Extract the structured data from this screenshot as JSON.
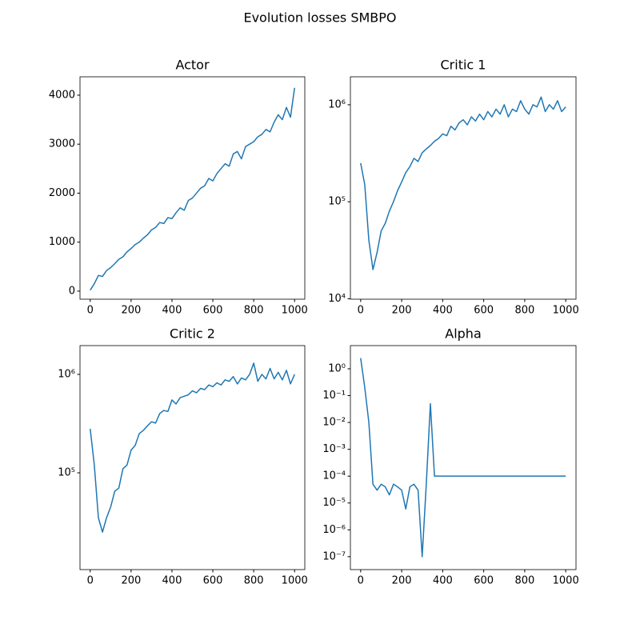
{
  "title": "Evolution losses SMBPO",
  "chart_data": [
    {
      "type": "line",
      "title": "Actor",
      "color": "#1f77b4",
      "x": [
        0,
        20,
        40,
        60,
        80,
        100,
        120,
        140,
        160,
        180,
        200,
        220,
        240,
        260,
        280,
        300,
        320,
        340,
        360,
        380,
        400,
        420,
        440,
        460,
        480,
        500,
        520,
        540,
        560,
        580,
        600,
        620,
        640,
        660,
        680,
        700,
        720,
        740,
        760,
        780,
        800,
        820,
        840,
        860,
        880,
        900,
        920,
        940,
        960,
        980,
        1000
      ],
      "values": [
        20,
        150,
        320,
        300,
        420,
        480,
        560,
        650,
        700,
        800,
        870,
        950,
        1000,
        1080,
        1150,
        1250,
        1300,
        1400,
        1380,
        1500,
        1480,
        1600,
        1700,
        1650,
        1850,
        1900,
        2000,
        2100,
        2150,
        2300,
        2250,
        2400,
        2500,
        2600,
        2550,
        2800,
        2850,
        2700,
        2950,
        3000,
        3050,
        3150,
        3200,
        3300,
        3250,
        3450,
        3600,
        3500,
        3750,
        3550,
        4150
      ],
      "xlim": [
        -50,
        1050
      ],
      "xticks": [
        0,
        200,
        400,
        600,
        800,
        1000
      ],
      "ylim": [
        -165,
        4375
      ],
      "yticks": [
        0,
        1000,
        2000,
        3000,
        4000
      ],
      "yscale": "linear"
    },
    {
      "type": "line",
      "title": "Critic 1",
      "color": "#1f77b4",
      "x": [
        0,
        20,
        40,
        60,
        80,
        100,
        120,
        140,
        160,
        180,
        200,
        220,
        240,
        260,
        280,
        300,
        320,
        340,
        360,
        380,
        400,
        420,
        440,
        460,
        480,
        500,
        520,
        540,
        560,
        580,
        600,
        620,
        640,
        660,
        680,
        700,
        720,
        740,
        760,
        780,
        800,
        820,
        840,
        860,
        880,
        900,
        920,
        940,
        960,
        980,
        1000
      ],
      "values": [
        250000,
        150000,
        40000,
        20000,
        30000,
        50000,
        60000,
        80000,
        100000,
        130000,
        160000,
        200000,
        230000,
        280000,
        260000,
        320000,
        350000,
        380000,
        420000,
        450000,
        500000,
        480000,
        600000,
        550000,
        650000,
        700000,
        620000,
        750000,
        680000,
        800000,
        700000,
        850000,
        750000,
        900000,
        800000,
        1000000,
        750000,
        900000,
        850000,
        1100000,
        900000,
        800000,
        1000000,
        950000,
        1200000,
        850000,
        1000000,
        900000,
        1100000,
        850000,
        950000
      ],
      "xlim": [
        -50,
        1050
      ],
      "xticks": [
        0,
        200,
        400,
        600,
        800,
        1000
      ],
      "ylim": [
        9900,
        1940000
      ],
      "yscale": "log",
      "yticks": [
        {
          "value": 10000,
          "label": "10⁴"
        },
        {
          "value": 100000,
          "label": "10⁵"
        },
        {
          "value": 1000000,
          "label": "10⁶"
        }
      ]
    },
    {
      "type": "line",
      "title": "Critic 2",
      "color": "#1f77b4",
      "x": [
        0,
        20,
        40,
        60,
        80,
        100,
        120,
        140,
        160,
        180,
        200,
        220,
        240,
        260,
        280,
        300,
        320,
        340,
        360,
        380,
        400,
        420,
        440,
        460,
        480,
        500,
        520,
        540,
        560,
        580,
        600,
        620,
        640,
        660,
        680,
        700,
        720,
        740,
        760,
        780,
        800,
        820,
        840,
        860,
        880,
        900,
        920,
        940,
        960,
        980,
        1000
      ],
      "values": [
        280000,
        120000,
        35000,
        25000,
        35000,
        45000,
        65000,
        70000,
        110000,
        120000,
        170000,
        190000,
        250000,
        270000,
        300000,
        330000,
        320000,
        400000,
        430000,
        420000,
        550000,
        500000,
        580000,
        600000,
        620000,
        680000,
        650000,
        720000,
        700000,
        780000,
        750000,
        820000,
        780000,
        880000,
        850000,
        950000,
        800000,
        920000,
        880000,
        1000000,
        1300000,
        850000,
        1000000,
        900000,
        1150000,
        900000,
        1050000,
        880000,
        1100000,
        800000,
        1000000
      ],
      "xlim": [
        -50,
        1050
      ],
      "xticks": [
        0,
        200,
        400,
        600,
        800,
        1000
      ],
      "ylim": [
        10400,
        1960000
      ],
      "yscale": "log",
      "yticks": [
        {
          "value": 100000,
          "label": "10⁵"
        },
        {
          "value": 1000000,
          "label": "10⁶"
        }
      ]
    },
    {
      "type": "line",
      "title": "Alpha",
      "color": "#1f77b4",
      "x": [
        0,
        20,
        40,
        60,
        80,
        100,
        120,
        140,
        160,
        180,
        200,
        220,
        240,
        260,
        280,
        300,
        320,
        340,
        360,
        380,
        400,
        420,
        440,
        460,
        480,
        500,
        520,
        540,
        560,
        580,
        600,
        620,
        640,
        660,
        680,
        700,
        720,
        740,
        760,
        780,
        800,
        820,
        840,
        860,
        880,
        900,
        920,
        940,
        960,
        980,
        1000
      ],
      "values": [
        2.5,
        0.2,
        0.01,
        5e-05,
        3e-05,
        5e-05,
        4e-05,
        2e-05,
        5e-05,
        4e-05,
        3e-05,
        6e-06,
        4e-05,
        5e-05,
        3e-05,
        1e-07,
        5e-05,
        0.05,
        0.0001,
        0.0001,
        0.0001,
        0.0001,
        0.0001,
        0.0001,
        0.0001,
        0.0001,
        0.0001,
        0.0001,
        0.0001,
        0.0001,
        0.0001,
        0.0001,
        0.0001,
        0.0001,
        0.0001,
        0.0001,
        0.0001,
        0.0001,
        0.0001,
        0.0001,
        0.0001,
        0.0001,
        0.0001,
        0.0001,
        0.0001,
        0.0001,
        0.0001,
        0.0001,
        0.0001,
        0.0001,
        0.0001
      ],
      "xlim": [
        -50,
        1050
      ],
      "xticks": [
        0,
        200,
        400,
        600,
        800,
        1000
      ],
      "ylim": [
        3.3e-08,
        7.3
      ],
      "yscale": "log",
      "yticks": [
        {
          "value": 1,
          "label": "10⁰"
        },
        {
          "value": 0.1,
          "label": "10⁻¹"
        },
        {
          "value": 0.01,
          "label": "10⁻²"
        },
        {
          "value": 0.001,
          "label": "10⁻³"
        },
        {
          "value": 0.0001,
          "label": "10⁻⁴"
        },
        {
          "value": 1e-05,
          "label": "10⁻⁵"
        },
        {
          "value": 1e-06,
          "label": "10⁻⁶"
        },
        {
          "value": 1e-07,
          "label": "10⁻⁷"
        }
      ]
    }
  ]
}
